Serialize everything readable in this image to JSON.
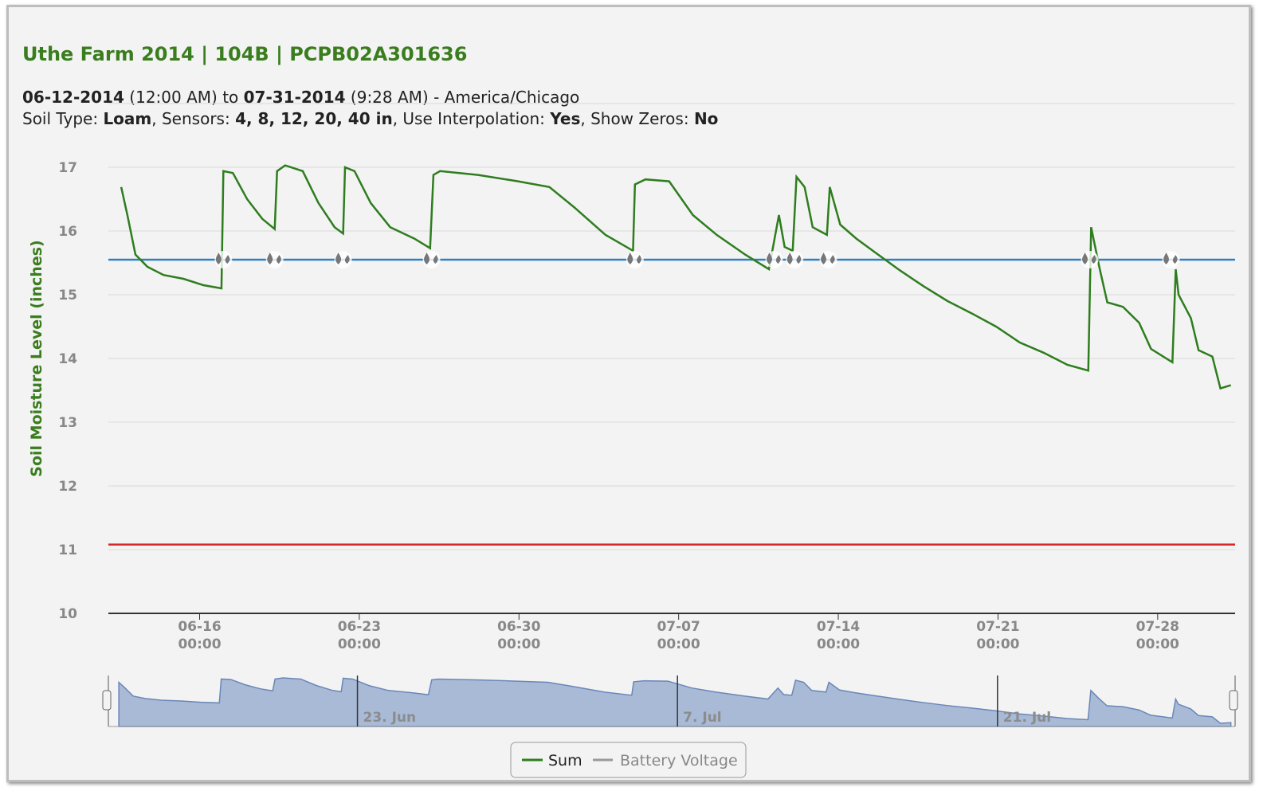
{
  "header": {
    "title": "Uthe Farm 2014 | 104B | PCPB02A301636",
    "lines": [
      [
        {
          "text": "06-12-2014",
          "bold": true
        },
        {
          "text": " (12:00 AM) to ",
          "bold": false
        },
        {
          "text": "07-31-2014",
          "bold": true
        },
        {
          "text": " (9:28 AM) - America/Chicago",
          "bold": false
        }
      ],
      [
        {
          "text": "Soil Type: ",
          "bold": false
        },
        {
          "text": "Loam",
          "bold": true
        },
        {
          "text": ", Sensors: ",
          "bold": false
        },
        {
          "text": "4, 8, 12, 20, 40 in",
          "bold": true
        },
        {
          "text": ", Use Interpolation: ",
          "bold": false
        },
        {
          "text": "Yes",
          "bold": true
        },
        {
          "text": ", Show Zeros: ",
          "bold": false
        },
        {
          "text": "No",
          "bold": true
        }
      ]
    ]
  },
  "chart_data": {
    "type": "line",
    "y_label": "Soil Moisture Level (inches)",
    "xlim": [
      "06-12 00:00",
      "07-31 09:28"
    ],
    "xticks": [
      {
        "value": "06-16 00:00",
        "label": "06-16\n00:00"
      },
      {
        "value": "06-23 00:00",
        "label": "06-23\n00:00"
      },
      {
        "value": "06-30 00:00",
        "label": "06-30\n00:00"
      },
      {
        "value": "07-07 00:00",
        "label": "07-07\n00:00"
      },
      {
        "value": "07-14 00:00",
        "label": "07-14\n00:00"
      },
      {
        "value": "07-21 00:00",
        "label": "07-21\n00:00"
      },
      {
        "value": "07-28 00:00",
        "label": "07-28\n00:00"
      }
    ],
    "ylim": [
      10,
      18
    ],
    "yticks": [
      10,
      11,
      12,
      13,
      14,
      15,
      16,
      17
    ],
    "grid": true,
    "x": [
      "06-12 13:30",
      "06-12 20:00",
      "06-13 04:30",
      "06-13 17:00",
      "06-14 10:00",
      "06-15 07:00",
      "06-16 04:00",
      "06-16 23:00",
      "06-17 01:00",
      "06-17 11:00",
      "06-18 02:00",
      "06-18 18:00",
      "06-19 07:00",
      "06-19 09:30",
      "06-19 18:00",
      "06-20 12:30",
      "06-21 05:00",
      "06-21 22:00",
      "06-22 07:00",
      "06-22 09:00",
      "06-22 19:00",
      "06-23 12:00",
      "06-24 08:30",
      "06-25 10:00",
      "06-26 02:30",
      "06-26 06:00",
      "06-26 13:00",
      "06-28 05:00",
      "06-29 23:00",
      "07-01 08:00",
      "07-02 09:30",
      "07-03 19:00",
      "07-05 00:00",
      "07-05 02:00",
      "07-05 13:00",
      "07-06 14:00",
      "07-07 15:00",
      "07-08 16:00",
      "07-09 22:00",
      "07-10 23:00",
      "07-11 09:30",
      "07-11 15:30",
      "07-12 00:00",
      "07-12 04:00",
      "07-12 12:30",
      "07-12 21:00",
      "07-13 12:00",
      "07-13 15:00",
      "07-14 02:00",
      "07-14 19:00",
      "07-15 16:00",
      "07-16 17:00",
      "07-17 18:00",
      "07-18 19:00",
      "07-19 20:00",
      "07-20 22:00",
      "07-21 23:00",
      "07-23 00:00",
      "07-24 01:00",
      "07-24 23:00",
      "07-25 02:00",
      "07-25 10:30",
      "07-25 19:00",
      "07-26 11:30",
      "07-27 04:30",
      "07-27 17:00",
      "07-28 15:30",
      "07-28 19:00",
      "07-28 22:00",
      "07-29 11:00",
      "07-29 19:00",
      "07-30 09:30",
      "07-30 18:00",
      "07-31 05:00"
    ],
    "series": [
      {
        "name": "Sum",
        "color": "#2e7d1e",
        "values": [
          16.69,
          16.25,
          15.63,
          15.44,
          15.31,
          15.25,
          15.15,
          15.1,
          16.94,
          16.91,
          16.5,
          16.19,
          16.03,
          16.94,
          17.03,
          16.94,
          16.44,
          16.06,
          15.96,
          17.0,
          16.94,
          16.44,
          16.06,
          15.88,
          15.73,
          16.88,
          16.94,
          16.88,
          16.78,
          16.69,
          16.38,
          15.94,
          15.69,
          16.73,
          16.81,
          16.78,
          16.25,
          15.94,
          15.63,
          15.4,
          16.25,
          15.75,
          15.69,
          16.85,
          16.69,
          16.06,
          15.94,
          16.69,
          16.1,
          15.88,
          15.65,
          15.38,
          15.13,
          14.9,
          14.71,
          14.5,
          14.25,
          14.09,
          13.9,
          13.81,
          16.06,
          15.44,
          14.88,
          14.81,
          14.56,
          14.15,
          13.94,
          15.4,
          15.0,
          14.63,
          14.13,
          14.03,
          13.53,
          13.58
        ]
      }
    ],
    "hidden_series": [
      {
        "name": "Battery Voltage",
        "color": "#999999"
      }
    ],
    "plot_lines": [
      {
        "value": 15.55,
        "color": "#2f7fc1"
      },
      {
        "value": 11.08,
        "color": "#d62728"
      }
    ],
    "irrigation_events": [
      "06-17 01:00",
      "06-19 07:00",
      "06-22 07:00",
      "06-26 04:00",
      "07-05 02:00",
      "07-11 04:30",
      "07-12 02:00",
      "07-13 13:30",
      "07-25 00:30",
      "07-28 14:00"
    ],
    "navigator_xticks": [
      {
        "value": "06-23 00:00",
        "label": "23. Jun"
      },
      {
        "value": "07-07 00:00",
        "label": "7. Jul"
      },
      {
        "value": "07-21 00:00",
        "label": "21. Jul"
      }
    ],
    "navigator_color": "#a8bad6"
  }
}
